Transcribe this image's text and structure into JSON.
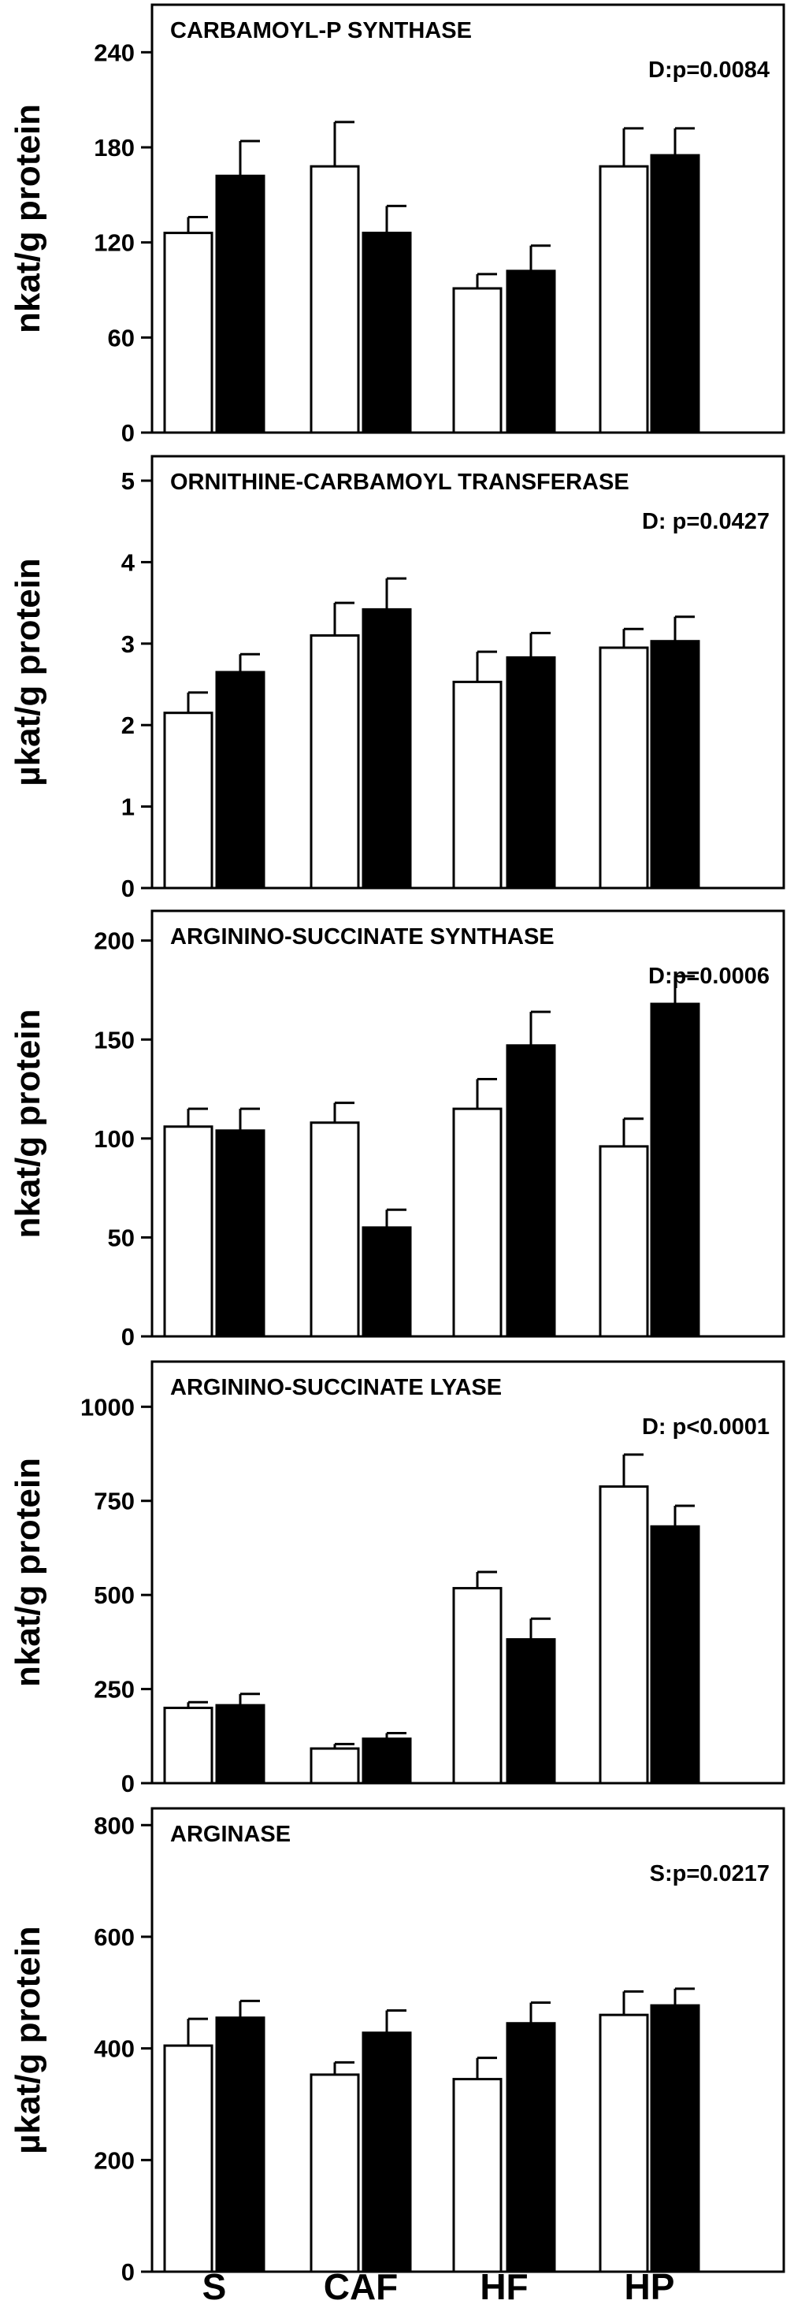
{
  "chart_data": [
    {
      "type": "bar",
      "title": "CARBAMOYL-P SYNTHASE",
      "annotation": "D:p=0.0084",
      "ylabel": "nkat/g protein",
      "categories": [
        "S",
        "CAF",
        "HF",
        "HP"
      ],
      "ylim": [
        0,
        270
      ],
      "yticks": [
        0,
        60,
        120,
        180,
        240
      ],
      "series": [
        {
          "fill": "#ffffff",
          "values": [
            126,
            168,
            91,
            168
          ],
          "errors": [
            10,
            28,
            9,
            24
          ]
        },
        {
          "fill": "#000000",
          "values": [
            162,
            126,
            102,
            175
          ],
          "errors": [
            22,
            17,
            16,
            17
          ]
        }
      ]
    },
    {
      "type": "bar",
      "title": "ORNITHINE-CARBAMOYL TRANSFERASE",
      "annotation": "D: p=0.0427",
      "ylabel": "µkat/g protein",
      "categories": [
        "S",
        "CAF",
        "HF",
        "HP"
      ],
      "ylim": [
        0,
        5.3
      ],
      "yticks": [
        0,
        1,
        2,
        3,
        4,
        5
      ],
      "series": [
        {
          "fill": "#ffffff",
          "values": [
            2.15,
            3.1,
            2.53,
            2.95
          ],
          "errors": [
            0.25,
            0.4,
            0.37,
            0.23
          ]
        },
        {
          "fill": "#000000",
          "values": [
            2.65,
            3.42,
            2.83,
            3.03
          ],
          "errors": [
            0.22,
            0.38,
            0.3,
            0.3
          ]
        }
      ]
    },
    {
      "type": "bar",
      "title": "ARGININO-SUCCINATE SYNTHASE",
      "annotation": "D:p=0.0006",
      "ylabel": "nkat/g protein",
      "categories": [
        "S",
        "CAF",
        "HF",
        "HP"
      ],
      "ylim": [
        0,
        215
      ],
      "yticks": [
        0,
        50,
        100,
        150,
        200
      ],
      "series": [
        {
          "fill": "#ffffff",
          "values": [
            106,
            108,
            115,
            96
          ],
          "errors": [
            9,
            10,
            15,
            14
          ]
        },
        {
          "fill": "#000000",
          "values": [
            104,
            55,
            147,
            168
          ],
          "errors": [
            11,
            9,
            17,
            14
          ]
        }
      ]
    },
    {
      "type": "bar",
      "title": "ARGININO-SUCCINATE LYASE",
      "annotation": "D: p<0.0001",
      "ylabel": "nkat/g protein",
      "categories": [
        "S",
        "CAF",
        "HF",
        "HP"
      ],
      "ylim": [
        0,
        1120
      ],
      "yticks": [
        0,
        250,
        500,
        750,
        1000
      ],
      "series": [
        {
          "fill": "#ffffff",
          "values": [
            200,
            92,
            518,
            788
          ],
          "errors": [
            15,
            12,
            43,
            85
          ]
        },
        {
          "fill": "#000000",
          "values": [
            207,
            118,
            382,
            682
          ],
          "errors": [
            30,
            15,
            55,
            55
          ]
        }
      ]
    },
    {
      "type": "bar",
      "title": "ARGINASE",
      "annotation": "S:p=0.0217",
      "ylabel": "µkat/g protein",
      "categories": [
        "S",
        "CAF",
        "HF",
        "HP"
      ],
      "ylim": [
        0,
        830
      ],
      "yticks": [
        0,
        200,
        400,
        600,
        800
      ],
      "series": [
        {
          "fill": "#ffffff",
          "values": [
            405,
            353,
            345,
            460
          ],
          "errors": [
            48,
            22,
            38,
            42
          ]
        },
        {
          "fill": "#000000",
          "values": [
            455,
            428,
            445,
            477
          ],
          "errors": [
            30,
            40,
            37,
            30
          ]
        }
      ]
    }
  ]
}
